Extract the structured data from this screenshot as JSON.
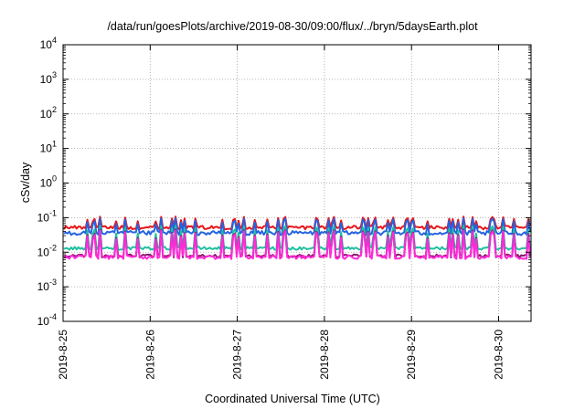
{
  "chart_data": {
    "type": "line",
    "title": "/data/run/goesPlots/archive/2019-08-30/09:00/flux/../bryn/5daysEarth.plot",
    "xlabel": "Coordinated Universal Time (UTC)",
    "ylabel": "cSv/day",
    "yscale": "log",
    "ylim": [
      0.0001,
      10000
    ],
    "y_ticks": [
      {
        "value": 0.0001,
        "base": "10",
        "exp": "-4"
      },
      {
        "value": 0.001,
        "base": "10",
        "exp": "-3"
      },
      {
        "value": 0.01,
        "base": "10",
        "exp": "-2"
      },
      {
        "value": 0.1,
        "base": "10",
        "exp": "-1"
      },
      {
        "value": 1,
        "base": "10",
        "exp": "0"
      },
      {
        "value": 10,
        "base": "10",
        "exp": "1"
      },
      {
        "value": 100,
        "base": "10",
        "exp": "2"
      },
      {
        "value": 1000,
        "base": "10",
        "exp": "3"
      },
      {
        "value": 10000,
        "base": "10",
        "exp": "4"
      }
    ],
    "xlim": [
      "2019-08-25",
      "2019-08-30 09:00"
    ],
    "x_ticks": [
      "2019-8-25",
      "2019-8-26",
      "2019-8-27",
      "2019-8-28",
      "2019-8-29",
      "2019-8-30"
    ],
    "grid": true,
    "legend": "none",
    "series": [
      {
        "color": "#e8161b",
        "base": 0.052,
        "spike": 0.085,
        "noise": 0.12
      },
      {
        "color": "#2563e0",
        "base": 0.036,
        "spike": 0.072,
        "noise": 0.14
      },
      {
        "color": "#20c0a0",
        "base": 0.013,
        "spike": 0.04,
        "noise": 0.1
      },
      {
        "color": "#8a1a6a",
        "base": 0.0078,
        "spike": 0.03,
        "noise": 0.1
      },
      {
        "color": "#ff2bd8",
        "base": 0.0072,
        "spike": 0.028,
        "noise": 0.12
      }
    ]
  }
}
